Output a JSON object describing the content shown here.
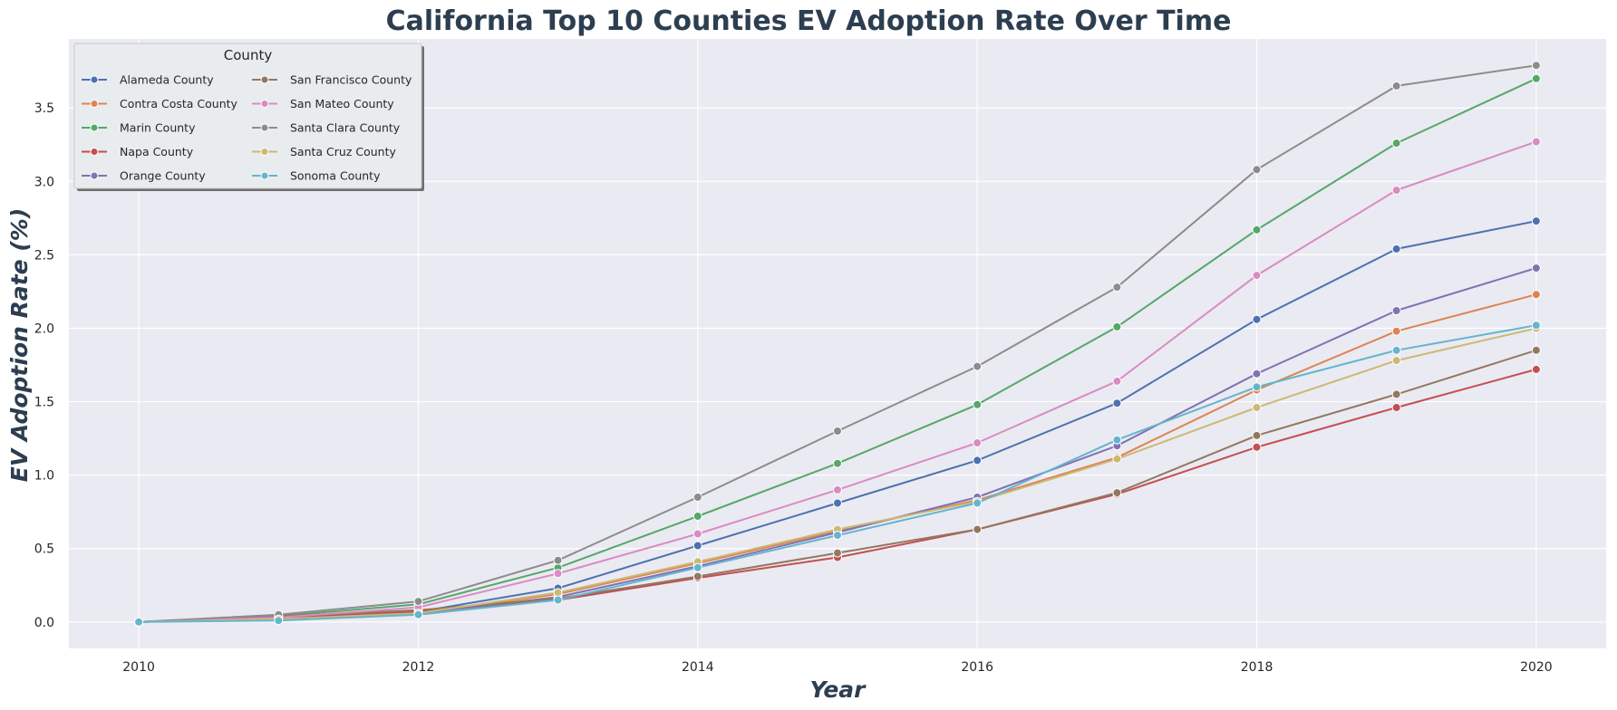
{
  "chart_data": {
    "type": "line",
    "title": "California Top 10 Counties EV Adoption Rate Over Time",
    "xlabel": "Year",
    "ylabel": "EV Adoption Rate (%)",
    "x": [
      2010,
      2011,
      2012,
      2013,
      2014,
      2015,
      2016,
      2017,
      2018,
      2019,
      2020
    ],
    "x_ticks": [
      2010,
      2012,
      2014,
      2016,
      2018,
      2020
    ],
    "y_ticks": [
      0.0,
      0.5,
      1.0,
      1.5,
      2.0,
      2.5,
      3.0,
      3.5
    ],
    "xlim": [
      2009.5,
      2020.5
    ],
    "ylim": [
      -0.18,
      3.97
    ],
    "grid": true,
    "legend": {
      "title": "County",
      "placement": "top-left",
      "columns": 2
    },
    "series": [
      {
        "name": "Alameda County",
        "color": "#4c72b0",
        "values": [
          0.0,
          0.02,
          0.07,
          0.23,
          0.52,
          0.81,
          1.1,
          1.49,
          2.06,
          2.54,
          2.73
        ]
      },
      {
        "name": "Contra Costa County",
        "color": "#dd8452",
        "values": [
          0.0,
          0.02,
          0.06,
          0.19,
          0.4,
          0.62,
          0.83,
          1.12,
          1.58,
          1.98,
          2.23
        ]
      },
      {
        "name": "Marin County",
        "color": "#55a868",
        "values": [
          0.0,
          0.04,
          0.12,
          0.37,
          0.72,
          1.08,
          1.48,
          2.01,
          2.67,
          3.26,
          3.7
        ]
      },
      {
        "name": "Napa County",
        "color": "#c44e52",
        "values": [
          0.0,
          0.03,
          0.07,
          0.15,
          0.3,
          0.44,
          0.63,
          0.87,
          1.19,
          1.46,
          1.72
        ]
      },
      {
        "name": "Orange County",
        "color": "#8172b3",
        "values": [
          0.0,
          0.02,
          0.06,
          0.17,
          0.38,
          0.61,
          0.85,
          1.2,
          1.69,
          2.12,
          2.41
        ]
      },
      {
        "name": "San Francisco County",
        "color": "#937860",
        "values": [
          0.0,
          0.04,
          0.08,
          0.16,
          0.31,
          0.47,
          0.63,
          0.88,
          1.27,
          1.55,
          1.85
        ]
      },
      {
        "name": "San Mateo County",
        "color": "#da8bc3",
        "values": [
          0.0,
          0.03,
          0.1,
          0.33,
          0.6,
          0.9,
          1.22,
          1.64,
          2.36,
          2.94,
          3.27
        ]
      },
      {
        "name": "Santa Clara County",
        "color": "#8c8c8c",
        "values": [
          0.0,
          0.05,
          0.14,
          0.42,
          0.85,
          1.3,
          1.74,
          2.28,
          3.08,
          3.65,
          3.79
        ]
      },
      {
        "name": "Santa Cruz County",
        "color": "#ccb974",
        "values": [
          0.0,
          0.02,
          0.06,
          0.2,
          0.41,
          0.63,
          0.82,
          1.11,
          1.46,
          1.78,
          2.0
        ]
      },
      {
        "name": "Sonoma County",
        "color": "#64b5cd",
        "values": [
          0.0,
          0.01,
          0.05,
          0.15,
          0.37,
          0.59,
          0.81,
          1.24,
          1.6,
          1.85,
          2.02
        ]
      }
    ]
  }
}
